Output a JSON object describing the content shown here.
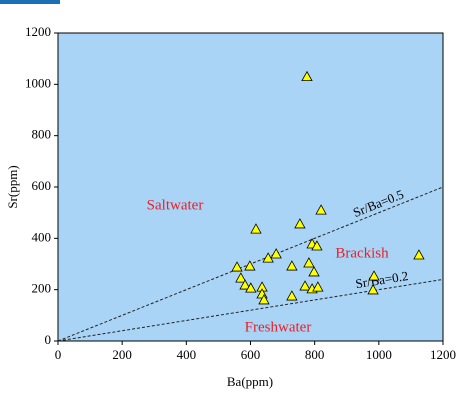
{
  "chart_data": {
    "type": "scatter",
    "x_label": "Ba(ppm)",
    "y_label": "Sr(ppm)",
    "xlim": [
      0,
      1200
    ],
    "ylim": [
      0,
      1200
    ],
    "xticks": [
      0,
      200,
      400,
      600,
      800,
      1000,
      1200
    ],
    "yticks": [
      0,
      200,
      400,
      600,
      800,
      1000,
      1200
    ],
    "background": "#aad4f6",
    "series": [
      {
        "color": "#ffff00",
        "x": [
          776,
          617,
          820,
          754,
          792,
          807,
          1125,
          680,
          655,
          598,
          558,
          729,
          782,
          798,
          570,
          583,
          601,
          636,
          636,
          642,
          729,
          770,
          792,
          810,
          985,
          982
        ],
        "values": [
          1030,
          436,
          510,
          456,
          378,
          370,
          335,
          339,
          323,
          292,
          288,
          292,
          304,
          269,
          245,
          218,
          206,
          210,
          183,
          160,
          175,
          214,
          203,
          210,
          253,
          199
        ]
      }
    ],
    "ref_lines": [
      {
        "label": "Sr/Ba=0.5",
        "slope": 0.5
      },
      {
        "label": "Sr/Ba=0.2",
        "slope": 0.2
      }
    ],
    "regions": [
      "Saltwater",
      "Brackish",
      "Freshwater"
    ]
  }
}
